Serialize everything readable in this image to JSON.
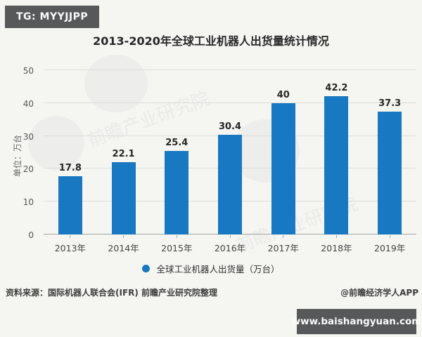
{
  "badge": {
    "label": "TG: MYYJJPP"
  },
  "title": "2013-2020年全球工业机器人出货量统计情况",
  "chart_data": {
    "type": "bar",
    "title": "2013-2020年全球工业机器人出货量统计情况",
    "categories": [
      "2013年",
      "2014年",
      "2015年",
      "2016年",
      "2017年",
      "2018年",
      "2019年"
    ],
    "values": [
      17.8,
      22.1,
      25.4,
      30.4,
      40,
      42.2,
      37.3
    ],
    "value_labels": [
      "17.8",
      "22.1",
      "25.4",
      "30.4",
      "40",
      "42.2",
      "37.3"
    ],
    "ylabel": "单位：万台",
    "xlabel": "",
    "ylim": [
      0,
      50
    ],
    "yticks": [
      0,
      10,
      20,
      30,
      40,
      50
    ],
    "grid": true,
    "bar_color": "#1878c2",
    "legend": {
      "position": "bottom",
      "marker": "circle",
      "marker_color": "#1878c2",
      "label": "全球工业机器人出货量（万台）"
    }
  },
  "footer": {
    "source": "资料来源：国际机器人联合会(IFR) 前瞻产业研究院整理",
    "credit": "@前瞻经济学人APP"
  },
  "banner": {
    "label": "www.baishangyuan.com"
  },
  "watermark": {
    "text": "前瞻产业研究院"
  },
  "colors": {
    "bar_blue": "#1878c2",
    "badge_bg": "#57585a",
    "banner_bg": "#57585a",
    "background": "#f5f5f2"
  }
}
